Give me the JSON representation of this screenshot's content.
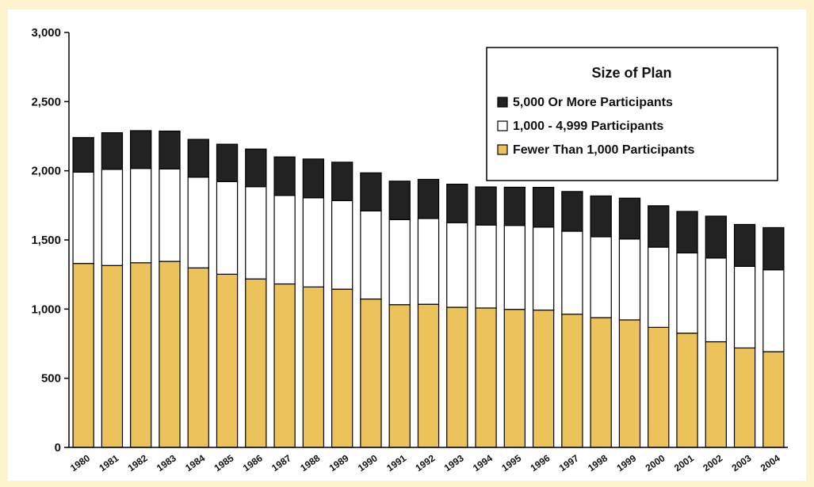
{
  "chart_data": {
    "type": "bar",
    "stacked": true,
    "title": "",
    "xlabel": "",
    "ylabel": "",
    "ylim": [
      0,
      3000
    ],
    "yticks": [
      "0",
      "500",
      "1,000",
      "1,500",
      "2,000",
      "2,500",
      "3,000"
    ],
    "ytick_values": [
      0,
      500,
      1000,
      1500,
      2000,
      2500,
      3000
    ],
    "grid": false,
    "legend": {
      "title": "Size of Plan",
      "placement": "top-right"
    },
    "categories": [
      "1980",
      "1981",
      "1982",
      "1983",
      "1984",
      "1985",
      "1986",
      "1987",
      "1988",
      "1989",
      "1990",
      "1991",
      "1992",
      "1993",
      "1994",
      "1995",
      "1996",
      "1997",
      "1998",
      "1999",
      "2000",
      "2001",
      "2002",
      "2003",
      "2004"
    ],
    "series": [
      {
        "name": "Fewer Than 1,000 Participants",
        "color": "#ecc35a",
        "values": [
          1330,
          1315,
          1335,
          1345,
          1298,
          1252,
          1218,
          1182,
          1160,
          1144,
          1073,
          1032,
          1035,
          1013,
          1008,
          998,
          993,
          963,
          938,
          922,
          868,
          826,
          764,
          719,
          692
        ]
      },
      {
        "name": "1,000 - 4,999 Participants",
        "color": "#ffffff",
        "values": [
          660,
          695,
          682,
          668,
          656,
          670,
          667,
          640,
          645,
          640,
          637,
          615,
          620,
          612,
          600,
          607,
          600,
          600,
          585,
          585,
          580,
          580,
          605,
          590,
          592
        ]
      },
      {
        "name": "5,000 Or More Participants",
        "color": "#222222",
        "values": [
          250,
          265,
          273,
          274,
          273,
          270,
          272,
          278,
          280,
          278,
          275,
          278,
          283,
          278,
          275,
          276,
          287,
          287,
          295,
          295,
          299,
          300,
          303,
          303,
          305
        ]
      }
    ]
  }
}
